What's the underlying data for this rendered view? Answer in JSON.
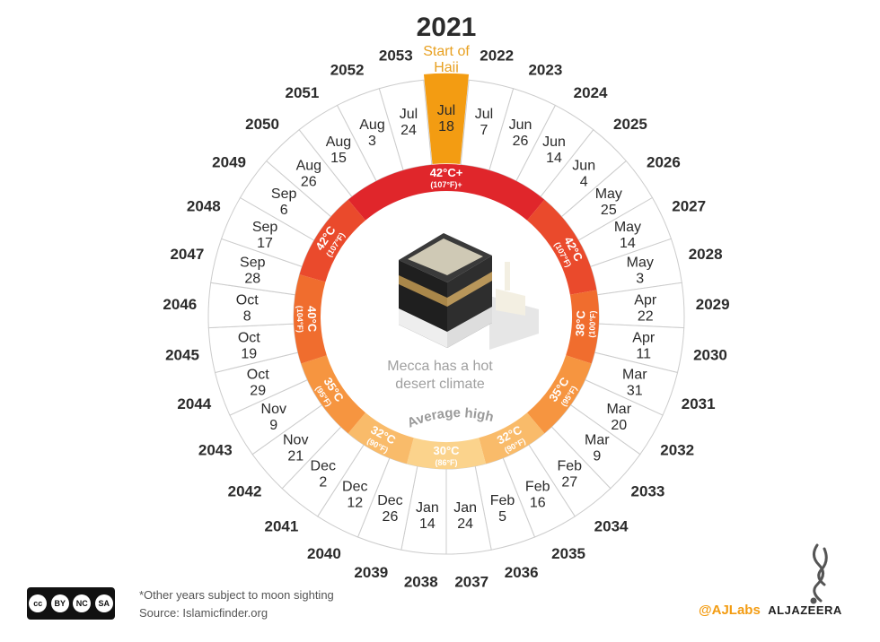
{
  "chart_data": {
    "type": "radial-calendar",
    "title": "2021",
    "subtitle": "Start of Hajj",
    "center_text": "Mecca has a hot desert climate",
    "arc_label": "Average high",
    "years": [
      {
        "year": "2021",
        "month": "Jul",
        "day": "18",
        "highlight": true
      },
      {
        "year": "2022",
        "month": "Jul",
        "day": "7"
      },
      {
        "year": "2023",
        "month": "Jun",
        "day": "26"
      },
      {
        "year": "2024",
        "month": "Jun",
        "day": "14"
      },
      {
        "year": "2025",
        "month": "Jun",
        "day": "4"
      },
      {
        "year": "2026",
        "month": "May",
        "day": "25"
      },
      {
        "year": "2027",
        "month": "May",
        "day": "14"
      },
      {
        "year": "2028",
        "month": "May",
        "day": "3"
      },
      {
        "year": "2029",
        "month": "Apr",
        "day": "22"
      },
      {
        "year": "2030",
        "month": "Apr",
        "day": "11"
      },
      {
        "year": "2031",
        "month": "Mar",
        "day": "31"
      },
      {
        "year": "2032",
        "month": "Mar",
        "day": "20"
      },
      {
        "year": "2033",
        "month": "Mar",
        "day": "9"
      },
      {
        "year": "2034",
        "month": "Feb",
        "day": "27"
      },
      {
        "year": "2035",
        "month": "Feb",
        "day": "16"
      },
      {
        "year": "2036",
        "month": "Feb",
        "day": "5"
      },
      {
        "year": "2037",
        "month": "Jan",
        "day": "24"
      },
      {
        "year": "2038",
        "month": "Jan",
        "day": "14"
      },
      {
        "year": "2039",
        "month": "Dec",
        "day": "26"
      },
      {
        "year": "2040",
        "month": "Dec",
        "day": "12"
      },
      {
        "year": "2041",
        "month": "Dec",
        "day": "2"
      },
      {
        "year": "2042",
        "month": "Nov",
        "day": "21"
      },
      {
        "year": "2043",
        "month": "Nov",
        "day": "9"
      },
      {
        "year": "2044",
        "month": "Oct",
        "day": "29"
      },
      {
        "year": "2045",
        "month": "Oct",
        "day": "19"
      },
      {
        "year": "2046",
        "month": "Oct",
        "day": "8"
      },
      {
        "year": "2047",
        "month": "Sep",
        "day": "28"
      },
      {
        "year": "2048",
        "month": "Sep",
        "day": "17"
      },
      {
        "year": "2049",
        "month": "Sep",
        "day": "6"
      },
      {
        "year": "2050",
        "month": "Aug",
        "day": "26"
      },
      {
        "year": "2051",
        "month": "Aug",
        "day": "15"
      },
      {
        "year": "2052",
        "month": "Aug",
        "day": "3"
      },
      {
        "year": "2053",
        "month": "Jul",
        "day": "24"
      }
    ],
    "temperature_bands": [
      {
        "label": "42°C+",
        "sub": "(107°F)+",
        "from_deg": -40,
        "to_deg": 40,
        "color": "#e0262b",
        "label_deg": 0
      },
      {
        "label": "42°C",
        "sub": "(107°F)",
        "from_deg": 40,
        "to_deg": 80,
        "color": "#ea4a2c",
        "label_deg": 62
      },
      {
        "label": "38°C",
        "sub": "(100°F)",
        "from_deg": 80,
        "to_deg": 108,
        "color": "#f06d2e",
        "label_deg": 93
      },
      {
        "label": "35°C",
        "sub": "(95°F)",
        "from_deg": 108,
        "to_deg": 140,
        "color": "#f69540",
        "label_deg": 123
      },
      {
        "label": "32°C",
        "sub": "(90°F)",
        "from_deg": 140,
        "to_deg": 165,
        "color": "#f9bb6a",
        "label_deg": 152
      },
      {
        "label": "30°C",
        "sub": "(86°F)",
        "from_deg": 165,
        "to_deg": 195,
        "color": "#fbd38c",
        "label_deg": 180
      },
      {
        "label": "32°C",
        "sub": "(90°F)",
        "from_deg": 195,
        "to_deg": 220,
        "color": "#f9bb6a",
        "label_deg": 208
      },
      {
        "label": "35°C",
        "sub": "(95°F)",
        "from_deg": 220,
        "to_deg": 252,
        "color": "#f69540",
        "label_deg": 237
      },
      {
        "label": "40°C",
        "sub": "(104°F)",
        "from_deg": 252,
        "to_deg": 286,
        "color": "#f06d2e",
        "label_deg": 269
      },
      {
        "label": "42°C",
        "sub": "(107°F)",
        "from_deg": 286,
        "to_deg": 320,
        "color": "#ea4a2c",
        "label_deg": 303
      }
    ]
  },
  "footer": {
    "note": "*Other years subject to moon sighting",
    "source": "Source: Islamicfinder.org",
    "license": [
      "cc",
      "BY",
      "NC",
      "SA"
    ]
  },
  "branding": {
    "handle": "@AJLabs",
    "name": "ALJAZEERA"
  },
  "colors": {
    "highlight": "#f39c12",
    "accent_text": "#e8a020",
    "ring_stroke": "#cccccc"
  }
}
